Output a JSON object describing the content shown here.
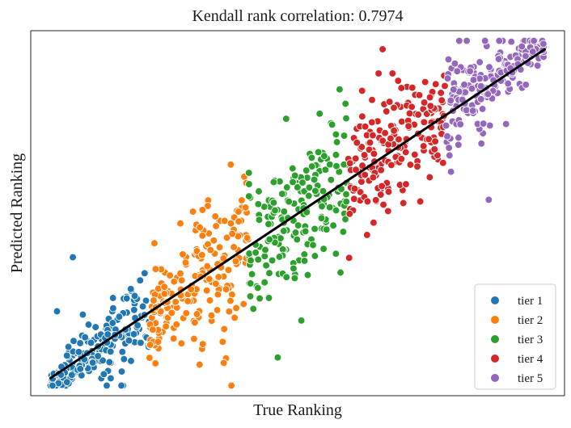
{
  "chart_data": {
    "type": "scatter",
    "title": "Kendall rank correlation: 0.7974",
    "xlabel": "True Ranking",
    "ylabel": "Predicted Ranking",
    "xlim": [
      -40,
      1040
    ],
    "ylim": [
      -40,
      1040
    ],
    "show_ticks": false,
    "grid": false,
    "legend_position": "bottom-right",
    "series": [
      {
        "name": "tier 1",
        "color": "#1f77b4",
        "range": [
          0,
          200
        ],
        "count": 200,
        "seed": 11
      },
      {
        "name": "tier 2",
        "color": "#ff7f0e",
        "range": [
          200,
          400
        ],
        "count": 200,
        "seed": 23
      },
      {
        "name": "tier 3",
        "color": "#2ca02c",
        "range": [
          400,
          600
        ],
        "count": 200,
        "seed": 37
      },
      {
        "name": "tier 4",
        "color": "#d62728",
        "range": [
          600,
          800
        ],
        "count": 200,
        "seed": 41
      },
      {
        "name": "tier 5",
        "color": "#9467bd",
        "range": [
          800,
          1000
        ],
        "count": 200,
        "seed": 53
      }
    ],
    "fit_line": {
      "x": [
        0,
        1000
      ],
      "y": [
        12,
        985
      ],
      "color": "#000000"
    }
  }
}
